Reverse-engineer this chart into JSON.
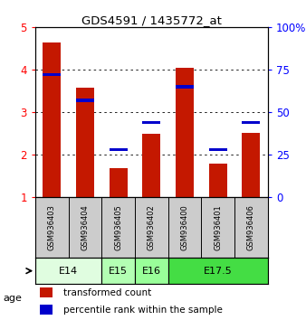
{
  "title": "GDS4591 / 1435772_at",
  "samples": [
    "GSM936403",
    "GSM936404",
    "GSM936405",
    "GSM936402",
    "GSM936400",
    "GSM936401",
    "GSM936406"
  ],
  "transformed_counts": [
    4.65,
    3.58,
    1.68,
    2.48,
    4.04,
    1.78,
    2.52
  ],
  "percentile_ranks": [
    72,
    57,
    28,
    44,
    65,
    28,
    44
  ],
  "ylim_left": [
    1,
    5
  ],
  "ylim_right": [
    0,
    100
  ],
  "yticks_left": [
    1,
    2,
    3,
    4,
    5
  ],
  "yticks_right": [
    0,
    25,
    50,
    75,
    100
  ],
  "age_groups": [
    {
      "label": "E14",
      "samples": [
        0,
        1
      ]
    },
    {
      "label": "E15",
      "samples": [
        2
      ]
    },
    {
      "label": "E16",
      "samples": [
        3
      ]
    },
    {
      "label": "E17.5",
      "samples": [
        4,
        5,
        6
      ]
    }
  ],
  "bar_color_red": "#c41800",
  "bar_color_blue": "#0000cc",
  "bar_width": 0.55,
  "blue_bar_height": 0.07,
  "sample_bg_color": "#cccccc",
  "age_color_E14": "#e0fde0",
  "age_color_E15": "#b3ffb3",
  "age_color_E16": "#99ff99",
  "age_color_E175": "#44dd44",
  "legend_red": "transformed count",
  "legend_blue": "percentile rank within the sample"
}
